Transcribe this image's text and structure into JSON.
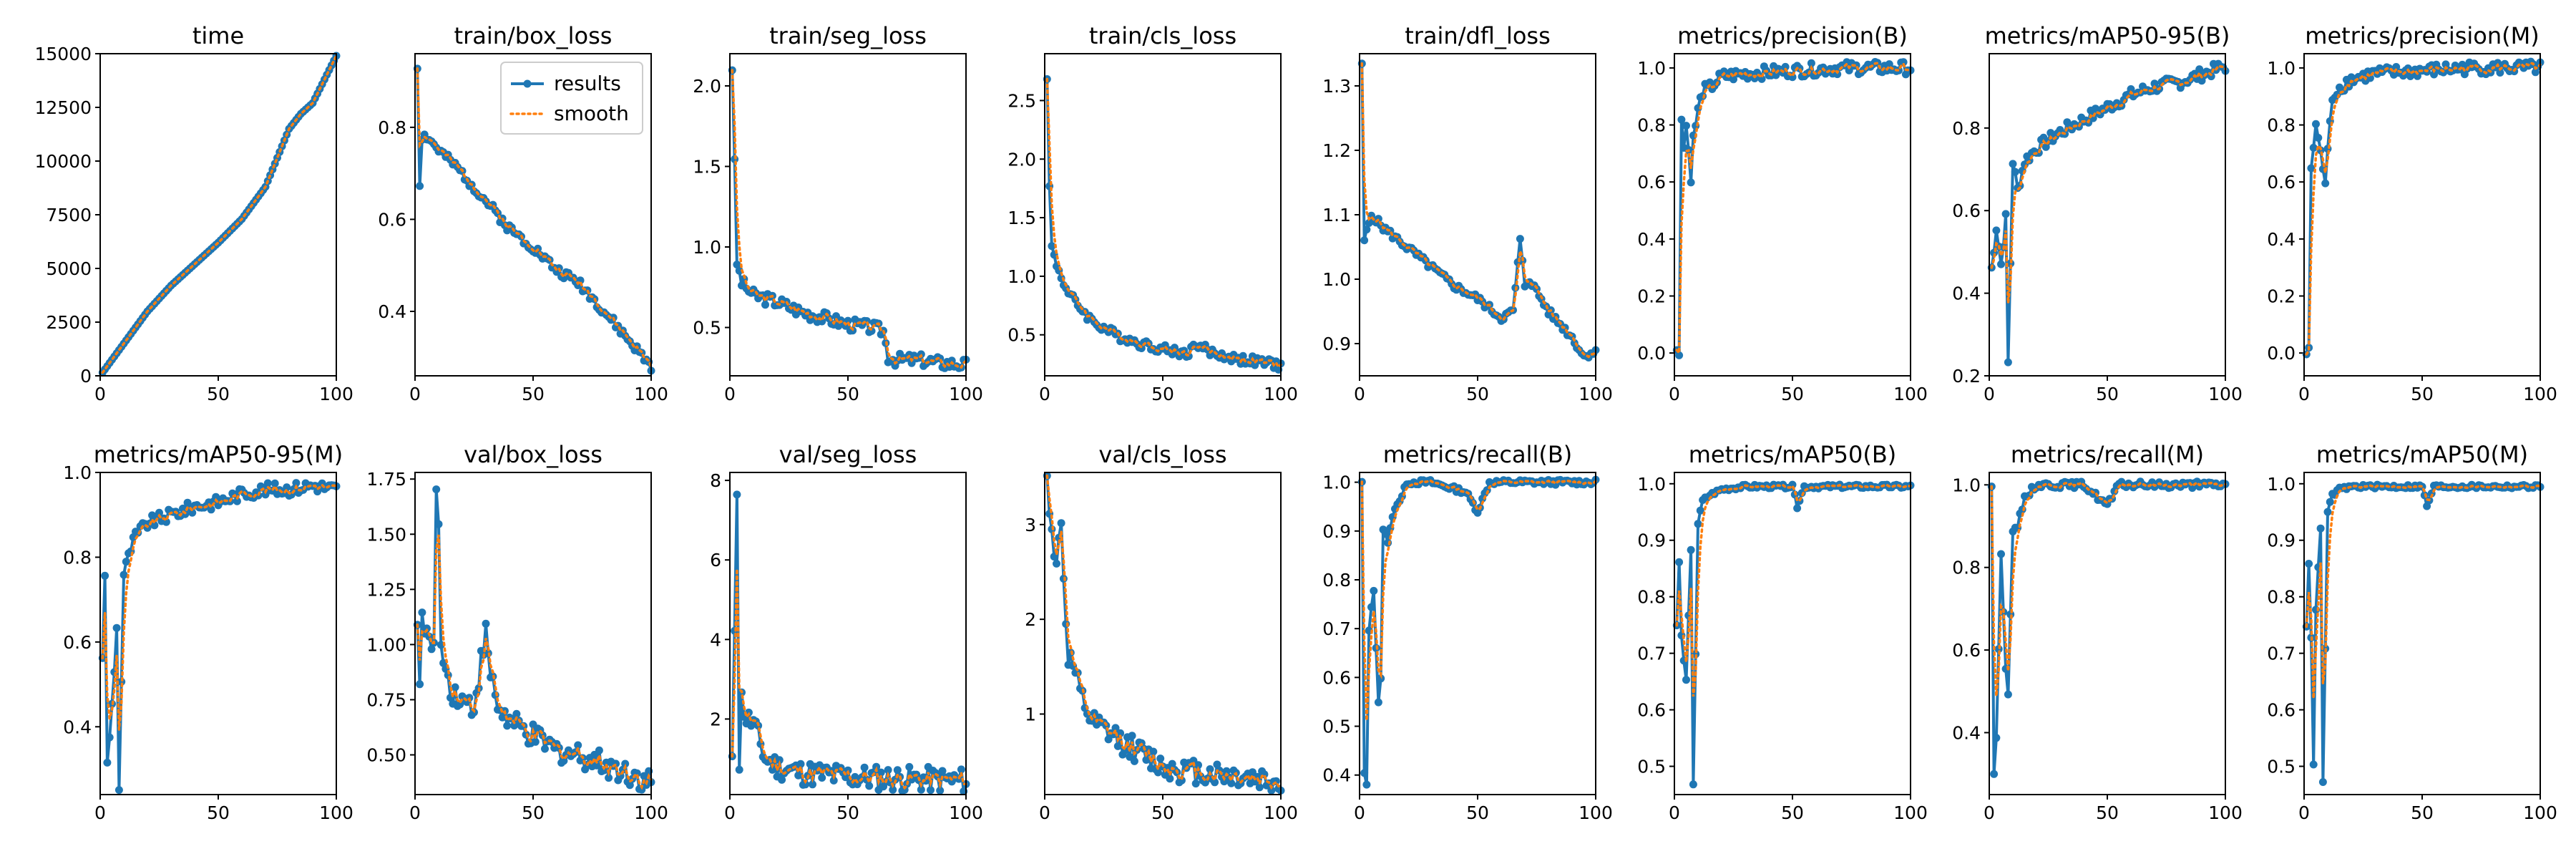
{
  "colors": {
    "results": "#1f77b4",
    "smooth": "#ff7f0e",
    "axes": "#000000",
    "background": "#ffffff"
  },
  "legend": {
    "placement": "top-right",
    "panel": "train/box_loss",
    "entries": [
      "results",
      "smooth"
    ]
  },
  "chart_data": [
    {
      "type": "line",
      "title": "time",
      "xlabel": "",
      "ylabel": "",
      "xlim": [
        0,
        100
      ],
      "ylim": [
        0,
        15000
      ],
      "xticks": [
        "0",
        "50",
        "100"
      ],
      "xtick_values": [
        0,
        50,
        100
      ],
      "yticks": [
        "0",
        "2500",
        "5000",
        "7500",
        "10000",
        "12500",
        "15000"
      ],
      "ytick_values": [
        0,
        2500,
        5000,
        7500,
        10000,
        12500,
        15000
      ],
      "key_x": [
        1,
        10,
        20,
        30,
        40,
        50,
        60,
        70,
        80,
        85,
        90,
        95,
        100
      ],
      "key_y": [
        150,
        1500,
        3000,
        4200,
        5200,
        6200,
        7300,
        8800,
        11500,
        12200,
        12700,
        13800,
        14900
      ],
      "noise": 0,
      "smooth_lag": 0,
      "seed": 1
    },
    {
      "type": "line",
      "title": "train/box_loss",
      "xlabel": "",
      "ylabel": "",
      "xlim": [
        0,
        100
      ],
      "ylim": [
        0.26,
        0.96
      ],
      "xticks": [
        "0",
        "50",
        "100"
      ],
      "xtick_values": [
        0,
        50,
        100
      ],
      "yticks": [
        "0.4",
        "0.6",
        "0.8"
      ],
      "ytick_values": [
        0.4,
        0.6,
        0.8
      ],
      "key_x": [
        1,
        2,
        3,
        5,
        10,
        20,
        30,
        40,
        50,
        60,
        70,
        80,
        90,
        95,
        100
      ],
      "key_y": [
        0.93,
        0.68,
        0.78,
        0.78,
        0.75,
        0.7,
        0.64,
        0.58,
        0.54,
        0.49,
        0.46,
        0.4,
        0.34,
        0.31,
        0.28
      ],
      "noise": 0.015,
      "smooth_lag": 0.35,
      "seed": 2
    },
    {
      "type": "line",
      "title": "train/seg_loss",
      "xlabel": "",
      "ylabel": "",
      "xlim": [
        0,
        100
      ],
      "ylim": [
        0.2,
        2.2
      ],
      "xticks": [
        "0",
        "50",
        "100"
      ],
      "xtick_values": [
        0,
        50,
        100
      ],
      "yticks": [
        "0.5",
        "1.0",
        "1.5",
        "2.0"
      ],
      "ytick_values": [
        0.5,
        1.0,
        1.5,
        2.0
      ],
      "key_x": [
        1,
        3,
        5,
        10,
        20,
        30,
        40,
        50,
        60,
        65,
        67,
        70,
        80,
        90,
        100
      ],
      "key_y": [
        2.12,
        0.9,
        0.78,
        0.7,
        0.66,
        0.6,
        0.56,
        0.52,
        0.5,
        0.48,
        0.32,
        0.3,
        0.3,
        0.28,
        0.27
      ],
      "noise": 0.02,
      "smooth_lag": 0.4,
      "seed": 3
    },
    {
      "type": "line",
      "title": "train/cls_loss",
      "xlabel": "",
      "ylabel": "",
      "xlim": [
        0,
        100
      ],
      "ylim": [
        0.15,
        2.9
      ],
      "xticks": [
        "0",
        "50",
        "100"
      ],
      "xtick_values": [
        0,
        50,
        100
      ],
      "yticks": [
        "0.5",
        "1.0",
        "1.5",
        "2.0",
        "2.5"
      ],
      "ytick_values": [
        0.5,
        1.0,
        1.5,
        2.0,
        2.5
      ],
      "key_x": [
        1,
        2,
        3,
        5,
        10,
        20,
        30,
        40,
        50,
        60,
        65,
        70,
        80,
        90,
        100
      ],
      "key_y": [
        2.72,
        1.75,
        1.25,
        1.1,
        0.85,
        0.62,
        0.5,
        0.43,
        0.38,
        0.34,
        0.42,
        0.35,
        0.3,
        0.27,
        0.24
      ],
      "noise": 0.015,
      "smooth_lag": 0.4,
      "seed": 4
    },
    {
      "type": "line",
      "title": "train/dfl_loss",
      "xlabel": "",
      "ylabel": "",
      "xlim": [
        0,
        100
      ],
      "ylim": [
        0.85,
        1.35
      ],
      "xticks": [
        "0",
        "50",
        "100"
      ],
      "xtick_values": [
        0,
        50,
        100
      ],
      "yticks": [
        "0.9",
        "1.0",
        "1.1",
        "1.2",
        "1.3"
      ],
      "ytick_values": [
        0.9,
        1.0,
        1.1,
        1.2,
        1.3
      ],
      "key_x": [
        1,
        2,
        5,
        10,
        20,
        30,
        40,
        50,
        60,
        65,
        68,
        70,
        72,
        80,
        90,
        95,
        100
      ],
      "key_y": [
        1.33,
        1.06,
        1.1,
        1.08,
        1.05,
        1.02,
        0.99,
        0.97,
        0.94,
        0.95,
        1.06,
        0.99,
        1.0,
        0.95,
        0.91,
        0.88,
        0.89
      ],
      "noise": 0.012,
      "smooth_lag": 0.35,
      "seed": 5
    },
    {
      "type": "line",
      "title": "metrics/precision(B)",
      "xlabel": "",
      "ylabel": "",
      "xlim": [
        0,
        100
      ],
      "ylim": [
        -0.08,
        1.05
      ],
      "xticks": [
        "0",
        "50",
        "100"
      ],
      "xtick_values": [
        0,
        50,
        100
      ],
      "yticks": [
        "0.0",
        "0.2",
        "0.4",
        "0.6",
        "0.8",
        "1.0"
      ],
      "ytick_values": [
        0,
        0.2,
        0.4,
        0.6,
        0.8,
        1.0
      ],
      "key_x": [
        1,
        2,
        3,
        4,
        5,
        7,
        8,
        10,
        12,
        15,
        20,
        30,
        50,
        70,
        100
      ],
      "key_y": [
        0.0,
        0.0,
        0.84,
        0.72,
        0.8,
        0.62,
        0.75,
        0.85,
        0.92,
        0.93,
        0.97,
        0.98,
        0.99,
        1.0,
        1.0
      ],
      "noise": 0.02,
      "smooth_lag": 0.45,
      "seed": 6
    },
    {
      "type": "line",
      "title": "metrics/mAP50-95(B)",
      "xlabel": "",
      "ylabel": "",
      "xlim": [
        0,
        100
      ],
      "ylim": [
        0.2,
        0.98
      ],
      "xticks": [
        "0",
        "50",
        "100"
      ],
      "xtick_values": [
        0,
        50,
        100
      ],
      "yticks": [
        "0.2",
        "0.4",
        "0.6",
        "0.8"
      ],
      "ytick_values": [
        0.2,
        0.4,
        0.6,
        0.8
      ],
      "key_x": [
        1,
        3,
        5,
        7,
        8,
        10,
        12,
        15,
        20,
        30,
        40,
        50,
        60,
        70,
        80,
        90,
        100
      ],
      "key_y": [
        0.46,
        0.56,
        0.47,
        0.58,
        0.23,
        0.72,
        0.65,
        0.72,
        0.75,
        0.79,
        0.82,
        0.85,
        0.88,
        0.9,
        0.91,
        0.93,
        0.95
      ],
      "noise": 0.02,
      "smooth_lag": 0.45,
      "seed": 7
    },
    {
      "type": "line",
      "title": "metrics/precision(M)",
      "xlabel": "",
      "ylabel": "",
      "xlim": [
        0,
        100
      ],
      "ylim": [
        -0.08,
        1.05
      ],
      "xticks": [
        "0",
        "50",
        "100"
      ],
      "xtick_values": [
        0,
        50,
        100
      ],
      "yticks": [
        "0.0",
        "0.2",
        "0.4",
        "0.6",
        "0.8",
        "1.0"
      ],
      "ytick_values": [
        0,
        0.2,
        0.4,
        0.6,
        0.8,
        1.0
      ],
      "key_x": [
        1,
        2,
        3,
        5,
        7,
        9,
        12,
        15,
        20,
        30,
        50,
        70,
        100
      ],
      "key_y": [
        0.0,
        0.0,
        0.65,
        0.8,
        0.7,
        0.6,
        0.9,
        0.93,
        0.96,
        0.98,
        0.99,
        1.0,
        1.0
      ],
      "noise": 0.02,
      "smooth_lag": 0.45,
      "seed": 8
    },
    {
      "type": "line",
      "title": "metrics/mAP50-95(M)",
      "xlabel": "",
      "ylabel": "",
      "xlim": [
        0,
        100
      ],
      "ylim": [
        0.24,
        1.0
      ],
      "xticks": [
        "0",
        "50",
        "100"
      ],
      "xtick_values": [
        0,
        50,
        100
      ],
      "yticks": [
        "0.4",
        "0.6",
        "0.8",
        "1.0"
      ],
      "ytick_values": [
        0.4,
        0.6,
        0.8,
        1.0
      ],
      "key_x": [
        1,
        2,
        3,
        5,
        7,
        8,
        10,
        13,
        15,
        20,
        30,
        40,
        50,
        60,
        70,
        80,
        90,
        100
      ],
      "key_y": [
        0.57,
        0.75,
        0.31,
        0.45,
        0.63,
        0.26,
        0.76,
        0.82,
        0.85,
        0.88,
        0.9,
        0.92,
        0.93,
        0.95,
        0.96,
        0.96,
        0.97,
        0.96
      ],
      "noise": 0.02,
      "smooth_lag": 0.45,
      "seed": 9
    },
    {
      "type": "line",
      "title": "val/box_loss",
      "xlabel": "",
      "ylabel": "",
      "xlim": [
        0,
        100
      ],
      "ylim": [
        0.32,
        1.78
      ],
      "xticks": [
        "0",
        "50",
        "100"
      ],
      "xtick_values": [
        0,
        50,
        100
      ],
      "yticks": [
        "0.50",
        "0.75",
        "1.00",
        "1.25",
        "1.50",
        "1.75"
      ],
      "ytick_values": [
        0.5,
        0.75,
        1.0,
        1.25,
        1.5,
        1.75
      ],
      "key_x": [
        1,
        2,
        3,
        5,
        8,
        9,
        10,
        11,
        13,
        15,
        20,
        25,
        30,
        31,
        35,
        40,
        50,
        60,
        70,
        80,
        90,
        95,
        100
      ],
      "key_y": [
        1.14,
        0.82,
        1.1,
        1.05,
        0.95,
        1.72,
        1.6,
        0.96,
        0.9,
        0.8,
        0.75,
        0.72,
        1.06,
        0.92,
        0.72,
        0.65,
        0.58,
        0.52,
        0.5,
        0.46,
        0.42,
        0.4,
        0.37
      ],
      "noise": 0.04,
      "smooth_lag": 0.4,
      "seed": 10
    },
    {
      "type": "line",
      "title": "val/seg_loss",
      "xlabel": "",
      "ylabel": "",
      "xlim": [
        0,
        100
      ],
      "ylim": [
        0.1,
        8.2
      ],
      "xticks": [
        "0",
        "50",
        "100"
      ],
      "xtick_values": [
        0,
        50,
        100
      ],
      "yticks": [
        "2",
        "4",
        "6",
        "8"
      ],
      "ytick_values": [
        2,
        4,
        6,
        8
      ],
      "key_x": [
        1,
        3,
        4,
        5,
        7,
        10,
        15,
        20,
        30,
        50,
        70,
        100
      ],
      "key_y": [
        0.8,
        7.9,
        0.9,
        2.5,
        2.0,
        1.9,
        1.0,
        0.8,
        0.65,
        0.55,
        0.5,
        0.45
      ],
      "noise": 0.04,
      "smooth_lag": 0.4,
      "seed": 11
    },
    {
      "type": "line",
      "title": "val/cls_loss",
      "xlabel": "",
      "ylabel": "",
      "xlim": [
        0,
        100
      ],
      "ylim": [
        0.15,
        3.55
      ],
      "xticks": [
        "0",
        "50",
        "100"
      ],
      "xtick_values": [
        0,
        50,
        100
      ],
      "yticks": [
        "1",
        "2",
        "3"
      ],
      "ytick_values": [
        1,
        2,
        3
      ],
      "key_x": [
        1,
        3,
        5,
        7,
        8,
        10,
        12,
        15,
        20,
        30,
        40,
        50,
        60,
        70,
        80,
        90,
        100
      ],
      "key_y": [
        3.45,
        3.0,
        2.5,
        3.1,
        2.4,
        1.6,
        1.5,
        1.2,
        0.9,
        0.75,
        0.6,
        0.45,
        0.4,
        0.38,
        0.35,
        0.32,
        0.28
      ],
      "noise": 0.04,
      "smooth_lag": 0.4,
      "seed": 12
    },
    {
      "type": "line",
      "title": "metrics/recall(B)",
      "xlabel": "",
      "ylabel": "",
      "xlim": [
        0,
        100
      ],
      "ylim": [
        0.36,
        1.02
      ],
      "xticks": [
        "0",
        "50",
        "100"
      ],
      "xtick_values": [
        0,
        50,
        100
      ],
      "yticks": [
        "0.4",
        "0.5",
        "0.6",
        "0.7",
        "0.8",
        "0.9",
        "1.0"
      ],
      "ytick_values": [
        0.4,
        0.5,
        0.6,
        0.7,
        0.8,
        0.9,
        1.0
      ],
      "key_x": [
        1,
        2,
        3,
        4,
        6,
        8,
        9,
        10,
        12,
        15,
        18,
        20,
        25,
        30,
        45,
        50,
        55,
        60,
        100
      ],
      "key_y": [
        1.0,
        0.4,
        0.38,
        0.7,
        0.78,
        0.55,
        0.6,
        0.9,
        0.88,
        0.95,
        0.97,
        1.0,
        1.0,
        1.0,
        0.98,
        0.94,
        1.0,
        1.0,
        1.0
      ],
      "noise": 0.008,
      "smooth_lag": 0.45,
      "seed": 13
    },
    {
      "type": "line",
      "title": "metrics/mAP50(B)",
      "xlabel": "",
      "ylabel": "",
      "xlim": [
        0,
        100
      ],
      "ylim": [
        0.45,
        1.02
      ],
      "xticks": [
        "0",
        "50",
        "100"
      ],
      "xtick_values": [
        0,
        50,
        100
      ],
      "yticks": [
        "0.5",
        "0.6",
        "0.7",
        "0.8",
        "0.9",
        "1.0"
      ],
      "ytick_values": [
        0.5,
        0.6,
        0.7,
        0.8,
        0.9,
        1.0
      ],
      "key_x": [
        1,
        2,
        3,
        5,
        7,
        8,
        10,
        12,
        15,
        20,
        30,
        50,
        52,
        55,
        100
      ],
      "key_y": [
        0.75,
        0.86,
        0.73,
        0.65,
        0.88,
        0.47,
        0.93,
        0.97,
        0.98,
        0.99,
        0.995,
        0.995,
        0.96,
        0.995,
        0.995
      ],
      "noise": 0.006,
      "smooth_lag": 0.45,
      "seed": 14
    },
    {
      "type": "line",
      "title": "metrics/recall(M)",
      "xlabel": "",
      "ylabel": "",
      "xlim": [
        0,
        100
      ],
      "ylim": [
        0.25,
        1.03
      ],
      "xticks": [
        "0",
        "50",
        "100"
      ],
      "xtick_values": [
        0,
        50,
        100
      ],
      "yticks": [
        "0.4",
        "0.6",
        "0.8",
        "1.0"
      ],
      "ytick_values": [
        0.4,
        0.6,
        0.8,
        1.0
      ],
      "key_x": [
        1,
        2,
        3,
        5,
        7,
        8,
        10,
        12,
        15,
        20,
        30,
        40,
        50,
        55,
        60,
        100
      ],
      "key_y": [
        1.0,
        0.3,
        0.38,
        0.84,
        0.55,
        0.5,
        0.88,
        0.9,
        0.97,
        1.0,
        1.0,
        1.0,
        0.95,
        1.0,
        1.0,
        1.0
      ],
      "noise": 0.01,
      "smooth_lag": 0.45,
      "seed": 15
    },
    {
      "type": "line",
      "title": "metrics/mAP50(M)",
      "xlabel": "",
      "ylabel": "",
      "xlim": [
        0,
        100
      ],
      "ylim": [
        0.45,
        1.02
      ],
      "xticks": [
        "0",
        "50",
        "100"
      ],
      "xtick_values": [
        0,
        50,
        100
      ],
      "yticks": [
        "0.5",
        "0.6",
        "0.7",
        "0.8",
        "0.9",
        "1.0"
      ],
      "ytick_values": [
        0.5,
        0.6,
        0.7,
        0.8,
        0.9,
        1.0
      ],
      "key_x": [
        1,
        2,
        3,
        4,
        5,
        7,
        8,
        10,
        12,
        15,
        20,
        30,
        50,
        52,
        55,
        100
      ],
      "key_y": [
        0.75,
        0.86,
        0.73,
        0.5,
        0.78,
        0.92,
        0.47,
        0.95,
        0.98,
        0.99,
        0.995,
        0.995,
        0.995,
        0.96,
        0.995,
        0.995
      ],
      "noise": 0.006,
      "smooth_lag": 0.45,
      "seed": 16
    }
  ]
}
